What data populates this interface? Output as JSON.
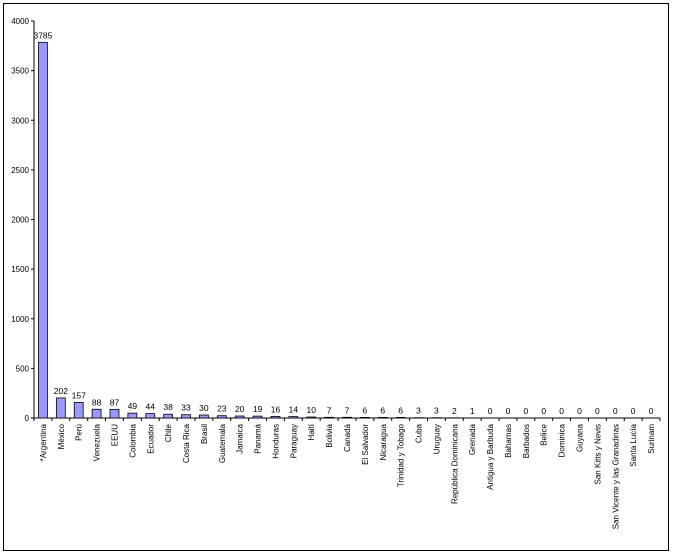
{
  "chart_data": {
    "type": "bar",
    "title": "",
    "xlabel": "",
    "ylabel": "",
    "ylim": [
      0,
      4000
    ],
    "yticks": [
      0,
      500,
      1000,
      1500,
      2000,
      2500,
      3000,
      3500,
      4000
    ],
    "grid": false,
    "legend": "none",
    "categories": [
      "*Argentina",
      "México",
      "Perú",
      "Venezuela",
      "EEUU",
      "Colombia",
      "Ecuador",
      "Chile",
      "Costa Rica",
      "Brasil",
      "Guatemala",
      "Jamaica",
      "Panamá",
      "Honduras",
      "Paraguay",
      "Haití",
      "Bolivia",
      "Canadá",
      "El Salvador",
      "Nicaragua",
      "Trinidad y Tobago",
      "Cuba",
      "Uruguay",
      "República Dominicana",
      "Grenada",
      "Antigua y Barbuda",
      "Bahamas",
      "Barbados",
      "Belice",
      "Dominica",
      "Guyana",
      "San Kitts y Nevis",
      "San Vicente y las Granadinas",
      "Santa Lucía",
      "Surinam"
    ],
    "values": [
      3785,
      202,
      157,
      88,
      87,
      49,
      44,
      38,
      33,
      30,
      23,
      20,
      19,
      16,
      14,
      10,
      7,
      7,
      6,
      6,
      6,
      3,
      3,
      2,
      1,
      0,
      0,
      0,
      0,
      0,
      0,
      0,
      0,
      0,
      0
    ],
    "colors": {
      "bar_fill": "#9999ff",
      "bar_stroke": "#000000"
    }
  }
}
